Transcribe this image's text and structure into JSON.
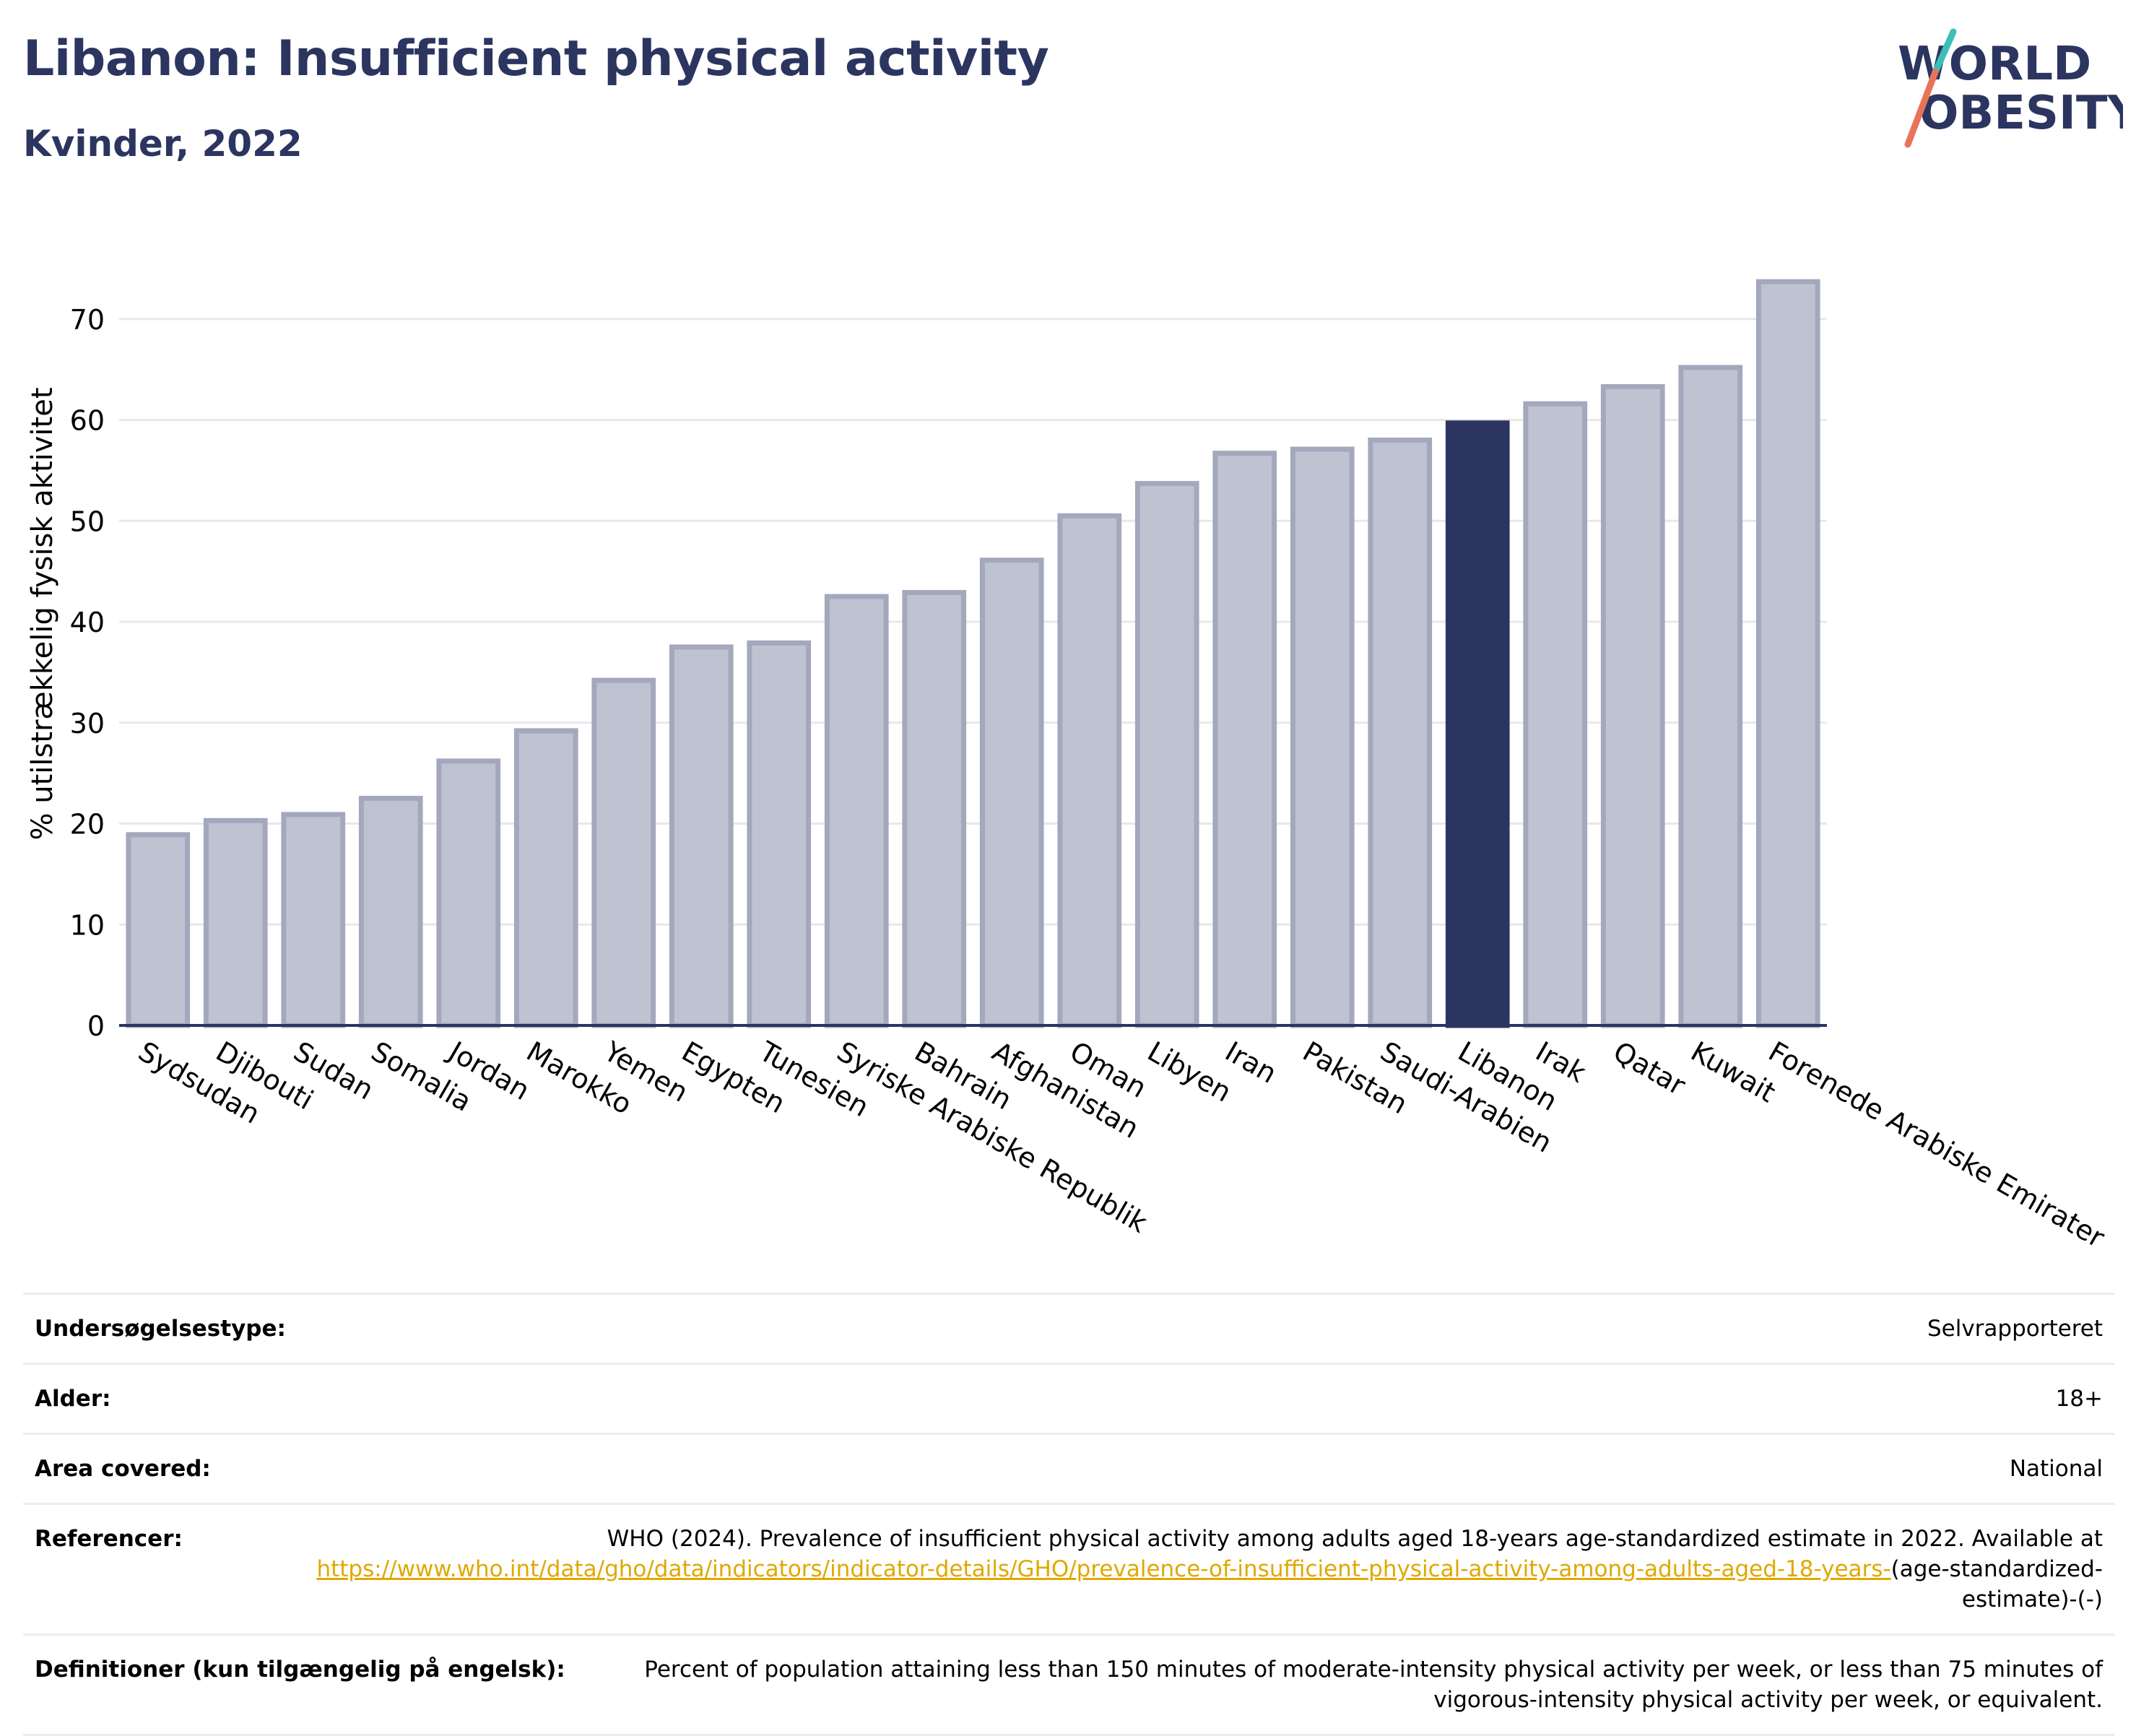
{
  "header": {
    "title": "Libanon: Insufficient physical activity",
    "subtitle": "Kvinder, 2022"
  },
  "logo": {
    "line1": "WORLD",
    "line2": "OBESITY",
    "colors": {
      "text": "#2b3560",
      "slash_top": "#3bbfb8",
      "slash_bottom": "#e8735a"
    }
  },
  "colors": {
    "bar": "#bfc2d0",
    "bar_border": "#a3a8bd",
    "highlight": "#2b3560",
    "grid": "#e8e8e8",
    "axis": "#2b3560",
    "link": "#e0a800"
  },
  "chart_data": {
    "type": "bar",
    "categories": [
      "Sydsudan",
      "Djibouti",
      "Sudan",
      "Somalia",
      "Jordan",
      "Marokko",
      "Yemen",
      "Egypten",
      "Tunesien",
      "Syriske Arabiske Republik",
      "Bahrain",
      "Afghanistan",
      "Oman",
      "Libyen",
      "Iran",
      "Pakistan",
      "Saudi-Arabien",
      "Libanon",
      "Irak",
      "Qatar",
      "Kuwait",
      "Forenede Arabiske Emirater"
    ],
    "values": [
      18.9,
      20.3,
      20.9,
      22.5,
      26.2,
      29.2,
      34.2,
      37.5,
      37.9,
      42.5,
      42.9,
      46.1,
      50.5,
      53.7,
      56.7,
      57.1,
      58.0,
      59.7,
      61.6,
      63.3,
      65.2,
      73.7
    ],
    "highlight": "Libanon",
    "ylabel": "% utilstrækkelig fysisk aktivitet",
    "xlabel": "",
    "ylim": [
      0,
      78
    ],
    "yticks": [
      0,
      10,
      20,
      30,
      40,
      50,
      60,
      70
    ],
    "grid": true
  },
  "meta": [
    {
      "label": "Undersøgelsestype:",
      "value": "Selvrapporteret"
    },
    {
      "label": "Alder:",
      "value": "18+"
    },
    {
      "label": "Area covered:",
      "value": "National"
    },
    {
      "label": "Referencer:",
      "value_before": "WHO (2024). Prevalence of insufficient physical activity among adults aged 18-years age-standardized estimate in 2022. Available at",
      "link": "https://www.who.int/data/gho/data/indicators/indicator-details/GHO/prevalence-of-insufficient-physical-activity-among-adults-aged-18-years-",
      "value_after": "(age-standardized-estimate)-(-)"
    },
    {
      "label": "Definitioner (kun tilgængelig på engelsk):",
      "value": "Percent of population attaining less than 150 minutes of moderate-intensity physical activity per week, or less than 75 minutes of vigorous-intensity physical activity per week, or equivalent."
    }
  ]
}
